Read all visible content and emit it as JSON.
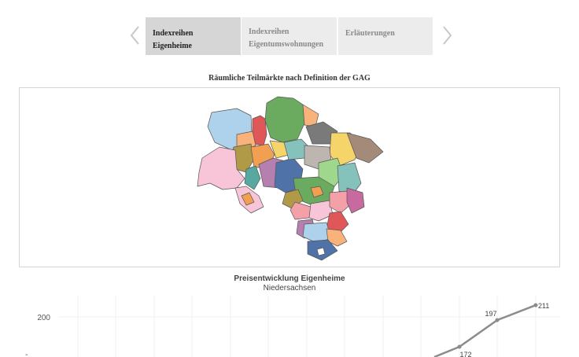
{
  "tabs": {
    "items": [
      {
        "label": "Indexreihen Eigenheime"
      },
      {
        "label_line1": "Indexreihen",
        "label_line2": "Eigentumswohnungen"
      },
      {
        "label": "Erläuterungen"
      }
    ],
    "active_index": 0
  },
  "map": {
    "title": "Räumliche Teilmärkte nach Definition der GAG"
  },
  "chart": {
    "title": "Preisentwicklung Eigenheime",
    "subtitle": "Niedersachsen"
  },
  "chart_data": {
    "type": "line",
    "title": "Preisentwicklung Eigenheime",
    "subtitle": "Niedersachsen",
    "y_ticks": [
      200
    ],
    "series": [
      {
        "values": [
          172,
          197,
          211
        ],
        "labels": [
          "172",
          "197",
          "211"
        ],
        "color": "#8c8c8c"
      }
    ],
    "grid": true
  },
  "colors": {
    "tab_active_bg": "#d6d6d6",
    "tab_inactive_bg": "#ececec",
    "line": "#8c8c8c"
  }
}
